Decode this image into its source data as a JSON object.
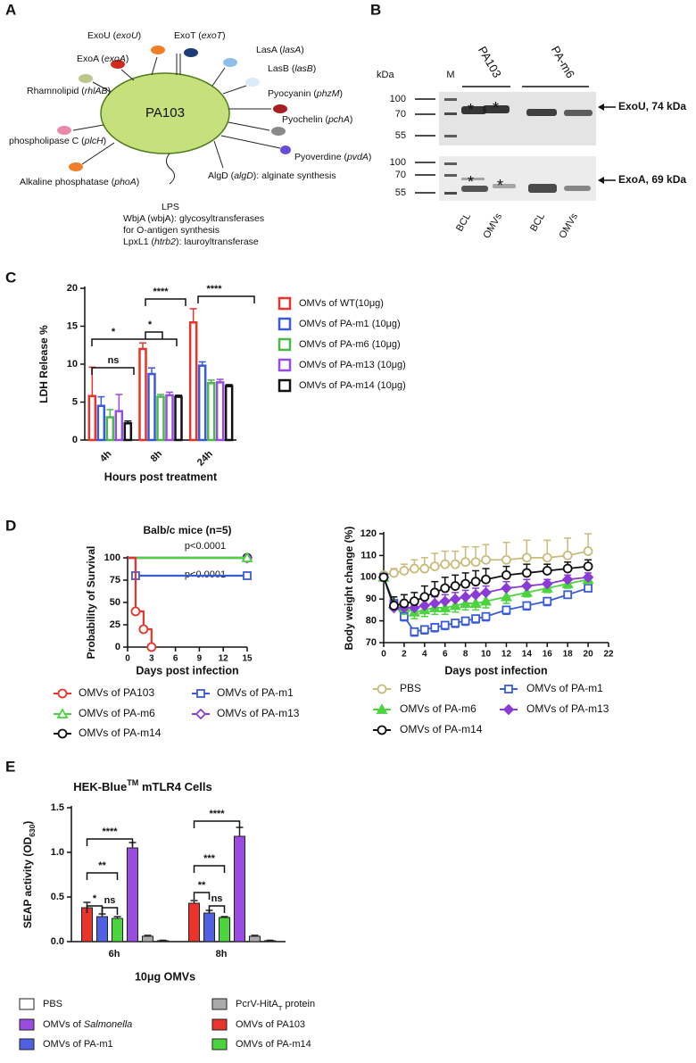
{
  "panel_labels": [
    "A",
    "B",
    "C",
    "D",
    "E"
  ],
  "panel_a": {
    "cell": "PA103",
    "labels": [
      [
        "ExoU (",
        {
          "text": "exoU",
          "style": "italic"
        },
        ")"
      ],
      [
        "ExoT (",
        {
          "text": "exoT",
          "style": "italic"
        },
        ")"
      ],
      [
        "LasA (",
        {
          "text": "lasA",
          "style": "italic"
        },
        ")"
      ],
      [
        "ExoA (",
        {
          "text": "exoA",
          "style": "italic"
        },
        ")"
      ],
      [
        "LasB (",
        {
          "text": "lasB",
          "style": "italic"
        },
        ")"
      ],
      [
        "Rhamnolipid (",
        {
          "text": "rhlAB",
          "style": "italic"
        },
        ")"
      ],
      [
        "Pyocyanin (",
        {
          "text": "phzM",
          "style": "italic"
        },
        ")"
      ],
      [
        "Pyochelin (",
        {
          "text": "pchA",
          "style": "italic"
        },
        ")"
      ],
      [
        "phospholipase C (",
        {
          "text": "plcH",
          "style": "italic"
        },
        ")"
      ],
      [
        "Pyoverdine (",
        {
          "text": "pvdA",
          "style": "italic"
        },
        ")"
      ],
      [
        "Alkaline phosphatase (",
        {
          "text": "phoA",
          "style": "italic"
        },
        ")"
      ],
      [
        "AlgD (",
        {
          "text": "algD",
          "style": "italic"
        },
        "): alginate synthesis"
      ],
      "LPS",
      "WbjA (wbjA): glycosyltransferases",
      "for O-antigen synthesis",
      [
        "LpxL1 (",
        {
          "text": "htrb2",
          "style": "italic"
        },
        "): lauroyltransferase"
      ]
    ]
  },
  "panel_b": {
    "kda": "kDa",
    "marker_lane": "M",
    "groups": [
      "PA103",
      "PA-m6"
    ],
    "markers_top": [
      100,
      70,
      55
    ],
    "markers_bottom": [
      100,
      70,
      55
    ],
    "bands": [
      "ExoU, 74 kDa",
      "ExoA, 69 kDa"
    ],
    "lanes": [
      "BCL",
      "OMVs",
      "BCL",
      "OMVs"
    ],
    "asterisks": [
      "*",
      "*",
      "*",
      "*"
    ]
  },
  "chart_data": [
    {
      "type": "bar",
      "style": "outline",
      "ylabel": "LDH Release %",
      "xlabel": "Hours post treatment",
      "categories": [
        "4h",
        "8h",
        "24h"
      ],
      "ylim": [
        0,
        20
      ],
      "yticks": [
        0,
        5,
        10,
        15,
        20
      ],
      "series": [
        {
          "name": "OMVs of WT(10μg)",
          "color": "#e8342a",
          "values": [
            5.8,
            12,
            15.5
          ],
          "errors": [
            3.8,
            0.8,
            1.8
          ]
        },
        {
          "name": "OMVs of PA-m1 (10μg)",
          "color": "#3a5bd9",
          "values": [
            4.5,
            8.7,
            9.8
          ],
          "errors": [
            1.2,
            0.8,
            0.5
          ]
        },
        {
          "name": "OMVs of PA-m6 (10μg)",
          "color": "#4cb84a",
          "values": [
            3,
            5.7,
            7.5
          ],
          "errors": [
            1,
            0.3,
            0.4
          ]
        },
        {
          "name": "OMVs of PA-m13 (10μg)",
          "color": "#9a4be0",
          "values": [
            3.8,
            5.9,
            7.6
          ],
          "errors": [
            2.2,
            0.4,
            0.4
          ]
        },
        {
          "name": "OMVs of PA-m14 (10μg)",
          "color": "#111111",
          "values": [
            2.2,
            5.7,
            7.1
          ],
          "errors": [
            0.3,
            0.2,
            0.2
          ]
        }
      ],
      "annotations": [
        "*",
        "ns",
        "*",
        "****",
        "****"
      ]
    },
    {
      "type": "survival",
      "title": "Balb/c mice (n=5)",
      "xlabel": "Days post infection",
      "ylabel": "Probability of Survival",
      "xlim": [
        0,
        15
      ],
      "xticks": [
        0,
        3,
        6,
        9,
        12,
        15
      ],
      "ylim": [
        0,
        100
      ],
      "yticks": [
        0,
        25,
        50,
        75,
        100
      ],
      "series": [
        {
          "name": "OMVs of PA103",
          "color": "#e8342a",
          "marker": "circle",
          "x": [
            0,
            1,
            2,
            3
          ],
          "values": [
            100,
            40,
            20,
            0
          ]
        },
        {
          "name": "OMVs of PA-m1",
          "color": "#3a5bd9",
          "marker": "square",
          "x": [
            0,
            1,
            15
          ],
          "values": [
            100,
            80,
            80
          ]
        },
        {
          "name": "OMVs of PA-m6",
          "color": "#4cd43f",
          "marker": "triangle",
          "x": [
            0,
            15
          ],
          "values": [
            100,
            100
          ]
        },
        {
          "name": "OMVs of PA-m13",
          "color": "#8a3bd6",
          "marker": "diamond",
          "x": [
            0,
            15
          ],
          "values": [
            100,
            100
          ]
        },
        {
          "name": "OMVs of PA-m14",
          "color": "#111111",
          "marker": "circle",
          "x": [
            0,
            15
          ],
          "values": [
            100,
            100
          ]
        }
      ],
      "annotations": [
        "p<0.0001",
        "p<0.0001"
      ]
    },
    {
      "type": "line",
      "xlabel": "Days post infection",
      "ylabel": "Body weight change (%)",
      "xlim": [
        0,
        22
      ],
      "xticks": [
        0,
        2,
        4,
        6,
        8,
        10,
        12,
        14,
        16,
        18,
        20,
        22
      ],
      "ylim": [
        70,
        120
      ],
      "yticks": [
        70,
        80,
        90,
        100,
        110,
        120
      ],
      "x": [
        0,
        1,
        2,
        3,
        4,
        5,
        6,
        7,
        8,
        9,
        10,
        12,
        14,
        16,
        18,
        20
      ],
      "series": [
        {
          "name": "PBS",
          "color": "#c9bb7a",
          "marker": "circle",
          "filled": false,
          "error_direction": "up",
          "values": [
            101,
            102,
            103,
            104,
            104,
            105,
            106,
            106,
            107,
            107,
            108,
            108,
            109,
            109,
            110,
            112
          ],
          "errors": [
            1,
            2,
            3,
            4,
            5,
            6,
            6,
            6,
            7,
            7,
            7,
            8,
            8,
            8,
            8,
            8
          ]
        },
        {
          "name": "OMVs of PA-m1",
          "color": "#3a5bd9",
          "marker": "square",
          "filled": false,
          "error_direction": "down",
          "values": [
            100,
            88,
            82,
            75,
            76,
            77,
            78,
            79,
            80,
            81,
            82,
            85,
            87,
            89,
            92,
            95
          ],
          "errors": [
            1,
            2,
            2,
            2,
            2,
            2,
            2,
            2,
            2,
            2,
            2,
            2,
            2,
            2,
            1,
            1
          ]
        },
        {
          "name": "OMVs of PA-m6",
          "color": "#4cd43f",
          "marker": "triangle",
          "filled": true,
          "error_direction": "down",
          "values": [
            100,
            88,
            86,
            84,
            85,
            86,
            86,
            87,
            88,
            88,
            89,
            91,
            93,
            95,
            97,
            99
          ],
          "errors": [
            1,
            3,
            3,
            3,
            3,
            3,
            3,
            3,
            3,
            3,
            3,
            3,
            2,
            2,
            2,
            2
          ]
        },
        {
          "name": "OMVs of PA-m13",
          "color": "#8a3bd6",
          "marker": "diamond",
          "filled": true,
          "error_direction": "up",
          "values": [
            100,
            86,
            86,
            86,
            87,
            88,
            89,
            90,
            91,
            92,
            93,
            95,
            96,
            97,
            99,
            100
          ],
          "errors": [
            1,
            3,
            3,
            3,
            3,
            3,
            3,
            3,
            3,
            3,
            3,
            3,
            3,
            2,
            2,
            2
          ]
        },
        {
          "name": "OMVs of PA-m14",
          "color": "#111111",
          "marker": "circle",
          "filled": false,
          "error_direction": "up",
          "values": [
            100,
            87,
            88,
            89,
            91,
            93,
            95,
            96,
            97,
            98,
            99,
            101,
            102,
            103,
            104,
            105
          ],
          "errors": [
            1,
            4,
            4,
            4,
            5,
            5,
            5,
            5,
            5,
            5,
            5,
            4,
            4,
            3,
            3,
            3
          ]
        }
      ]
    },
    {
      "type": "bar",
      "style": "filled",
      "title": [
        "HEK-Blue",
        {
          "text": "TM",
          "style": "sup"
        },
        " mTLR4 Cells"
      ],
      "ylabel": [
        "SEAP activity (OD",
        {
          "text": "630",
          "style": "sub"
        },
        ")"
      ],
      "xlabel": "10μg OMVs",
      "categories": [
        "6h",
        "8h"
      ],
      "ylim": [
        0,
        1.5
      ],
      "yticks": [
        {
          "value": 0,
          "label": "0.0"
        },
        0.5,
        {
          "value": 1,
          "label": "1.0"
        },
        1.5
      ],
      "series": [
        {
          "name": "OMVs of PA103",
          "color": "#e8342a",
          "values": [
            0.38,
            0.43
          ],
          "errors": [
            0.06,
            0.03
          ]
        },
        {
          "name": "OMVs of PA-m1",
          "color": "#5060e0",
          "values": [
            0.28,
            0.32
          ],
          "errors": [
            0.03,
            0.03
          ]
        },
        {
          "name": "OMVs of PA-m14",
          "color": "#4cd43f",
          "values": [
            0.26,
            0.27
          ],
          "errors": [
            0.02,
            0.01
          ]
        },
        {
          "name": [
            "OMVs of ",
            {
              "text": "Salmonella",
              "style": "italic"
            }
          ],
          "color": "#9a4be0",
          "values": [
            1.05,
            1.18
          ],
          "errors": [
            0.06,
            0.1
          ]
        },
        {
          "name": [
            "PcrV-HitA",
            {
              "text": "T",
              "style": "sub"
            },
            " protein"
          ],
          "color": "#aaaaaa",
          "values": [
            0.06,
            0.06
          ],
          "errors": [
            0.01,
            0.01
          ]
        },
        {
          "name": "PBS",
          "color": "#ffffff",
          "values": [
            0.01,
            0.01
          ],
          "errors": [
            0.005,
            0.005
          ]
        }
      ],
      "annotations": [
        [
          "*",
          "**",
          "****",
          "ns"
        ],
        [
          "**",
          "***",
          "****",
          "ns"
        ]
      ]
    }
  ]
}
